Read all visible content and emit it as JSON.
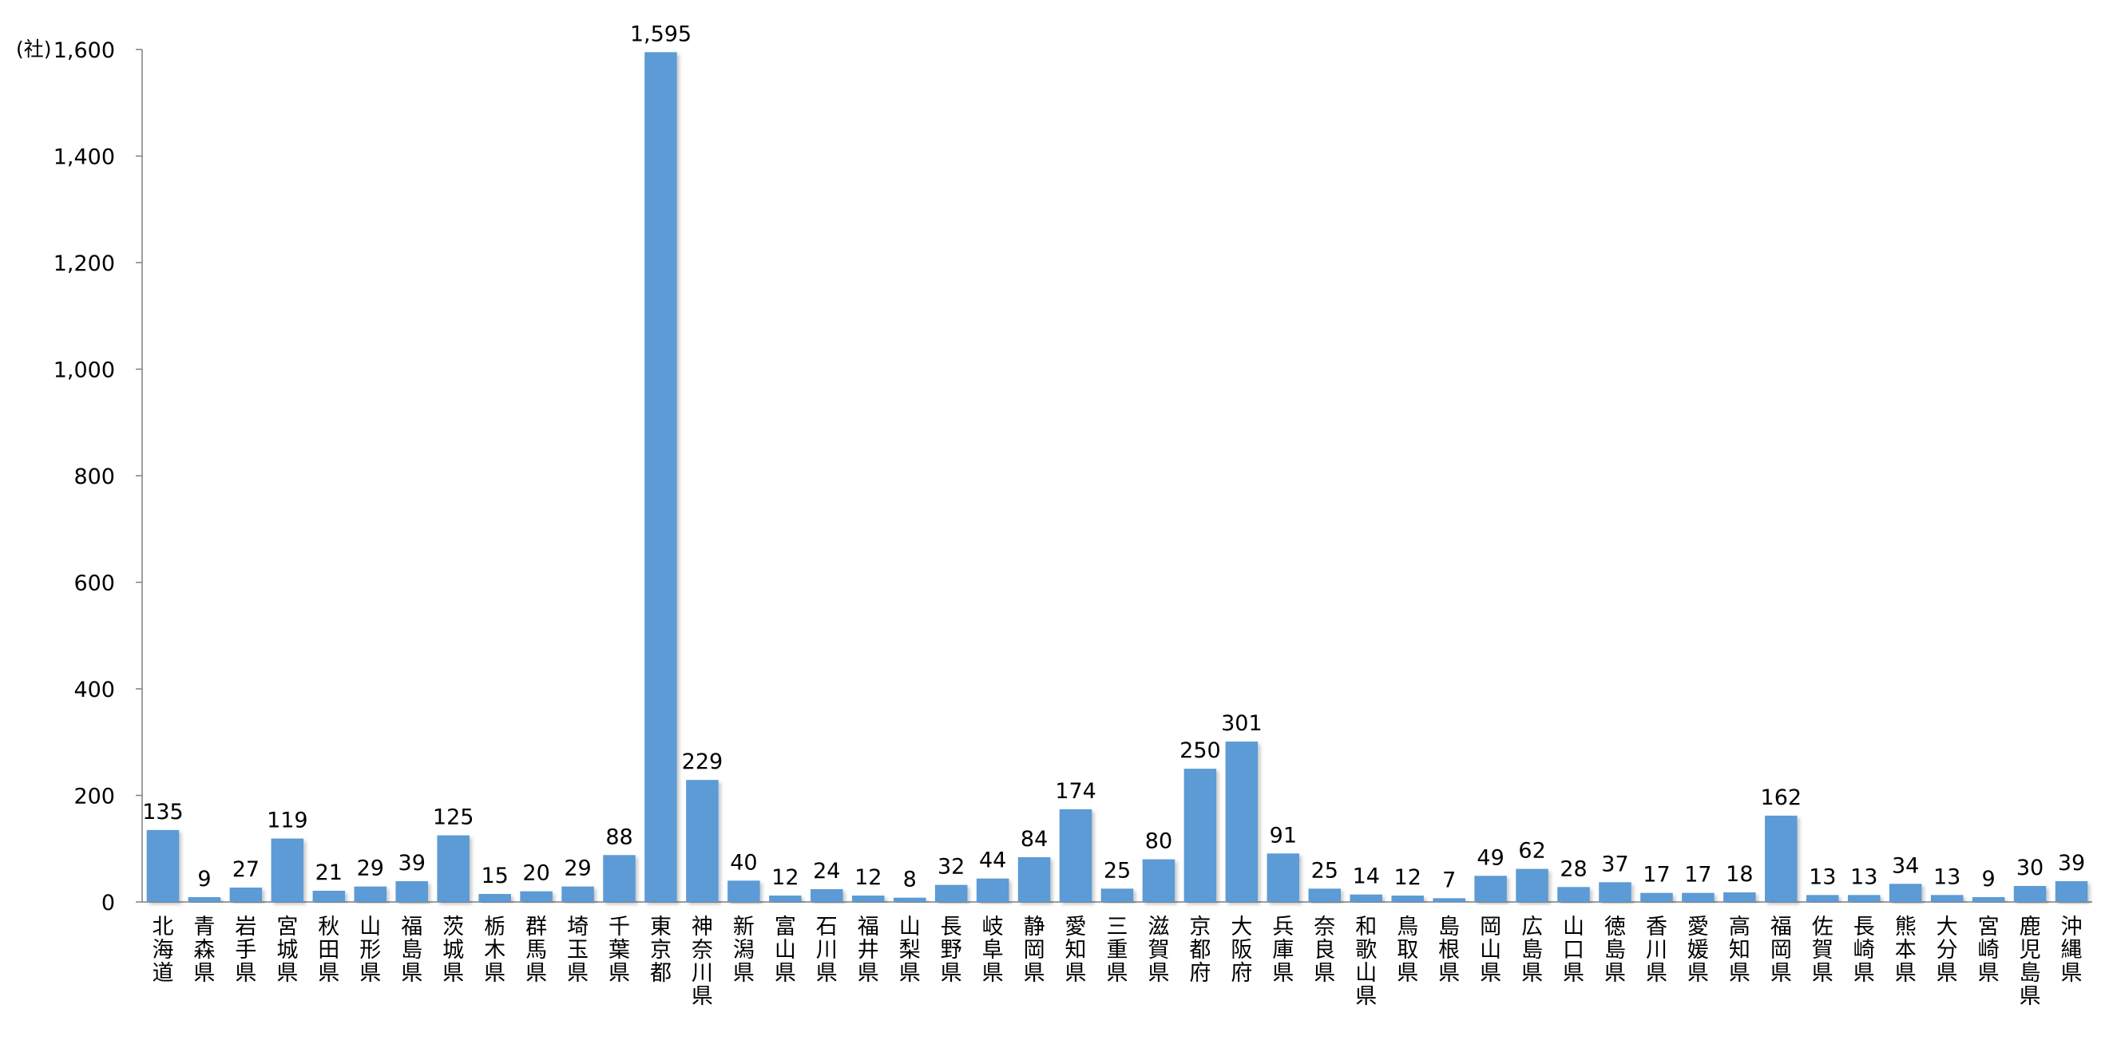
{
  "chart_data": {
    "type": "bar",
    "unit_label": "(社)",
    "categories": [
      "北海道",
      "青森県",
      "岩手県",
      "宮城県",
      "秋田県",
      "山形県",
      "福島県",
      "茨城県",
      "栃木県",
      "群馬県",
      "埼玉県",
      "千葉県",
      "東京都",
      "神奈川県",
      "新潟県",
      "富山県",
      "石川県",
      "福井県",
      "山梨県",
      "長野県",
      "岐阜県",
      "静岡県",
      "愛知県",
      "三重県",
      "滋賀県",
      "京都府",
      "大阪府",
      "兵庫県",
      "奈良県",
      "和歌山県",
      "鳥取県",
      "島根県",
      "岡山県",
      "広島県",
      "山口県",
      "徳島県",
      "香川県",
      "愛媛県",
      "高知県",
      "福岡県",
      "佐賀県",
      "長崎県",
      "熊本県",
      "大分県",
      "宮崎県",
      "鹿児島県",
      "沖縄県"
    ],
    "values": [
      135,
      9,
      27,
      119,
      21,
      29,
      39,
      125,
      15,
      20,
      29,
      88,
      1595,
      229,
      40,
      12,
      24,
      12,
      8,
      32,
      44,
      84,
      174,
      25,
      80,
      250,
      301,
      91,
      25,
      14,
      12,
      7,
      49,
      62,
      28,
      37,
      17,
      17,
      18,
      162,
      13,
      13,
      34,
      13,
      9,
      30,
      39
    ],
    "data_labels": [
      "135",
      "9",
      "27",
      "119",
      "21",
      "29",
      "39",
      "125",
      "15",
      "20",
      "29",
      "88",
      "1,595",
      "229",
      "40",
      "12",
      "24",
      "12",
      "8",
      "32",
      "44",
      "84",
      "174",
      "25",
      "80",
      "250",
      "301",
      "91",
      "25",
      "14",
      "12",
      "7",
      "49",
      "62",
      "28",
      "37",
      "17",
      "17",
      "18",
      "162",
      "13",
      "13",
      "34",
      "13",
      "9",
      "30",
      "39"
    ],
    "y_ticks": [
      "0",
      "200",
      "400",
      "600",
      "800",
      "1,000",
      "1,200",
      "1,400",
      "1,600"
    ],
    "ylim": [
      0,
      1600
    ],
    "grid": false,
    "legend": "none",
    "bar_color": "#5B9BD5",
    "title": "",
    "xlabel": "",
    "ylabel": ""
  }
}
